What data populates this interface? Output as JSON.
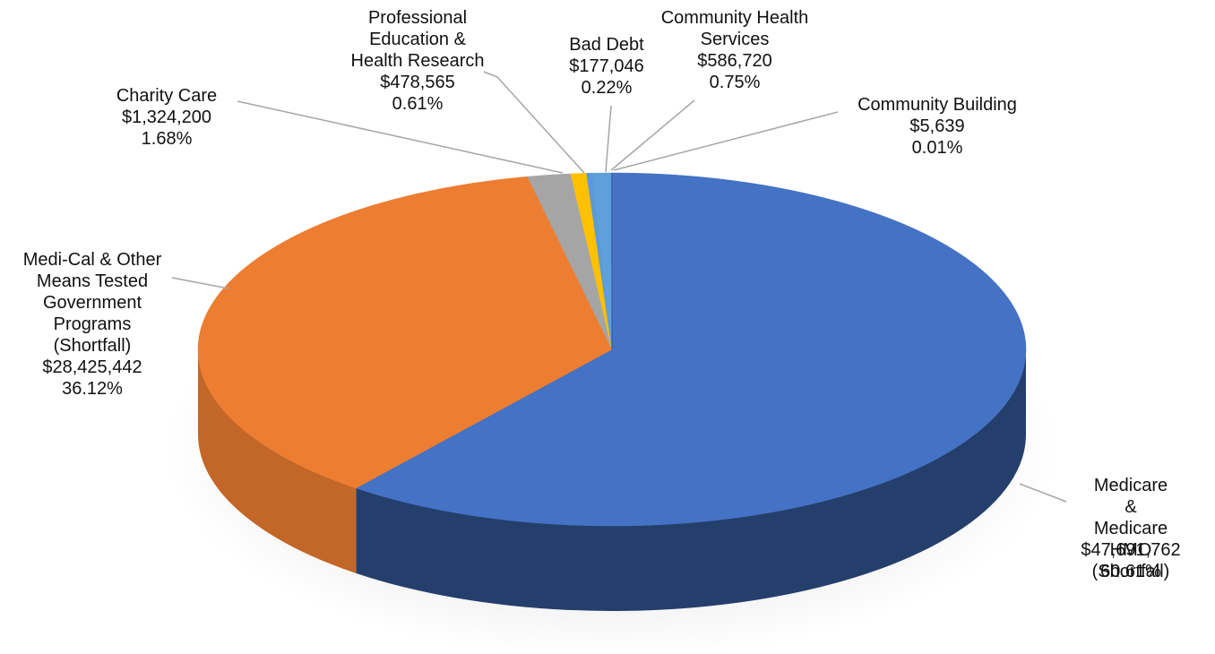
{
  "chart_data": {
    "type": "pie3d",
    "categories": [
      "Medicare &\nMedicare HMO\n(Shortfall)",
      "Medi-Cal & Other\nMeans Tested\nGovernment\nPrograms\n(Shortfall)",
      "Charity Care",
      "Professional\nEducation &\nHealth Research",
      "Bad Debt",
      "Community Health\nServices",
      "Community Building"
    ],
    "values": [
      60.61,
      36.12,
      1.68,
      0.61,
      0.22,
      0.75,
      0.01
    ],
    "value_labels": [
      "60.61%",
      "36.12%",
      "1.68%",
      "0.61%",
      "0.22%",
      "0.75%",
      "0.01%"
    ],
    "amounts": [
      47691762,
      28425442,
      1324200,
      478565,
      177046,
      586720,
      5639
    ],
    "amount_labels": [
      "$47,691,762",
      "$28,425,442",
      "$1,324,200",
      "$478,565",
      "$177,046",
      "$586,720",
      "$5,639"
    ],
    "colors": [
      "#4472c4",
      "#ed7d31",
      "#a5a5a5",
      "#ffc000",
      "#5b9bd5",
      "#5fa0dc",
      "#264478"
    ]
  }
}
